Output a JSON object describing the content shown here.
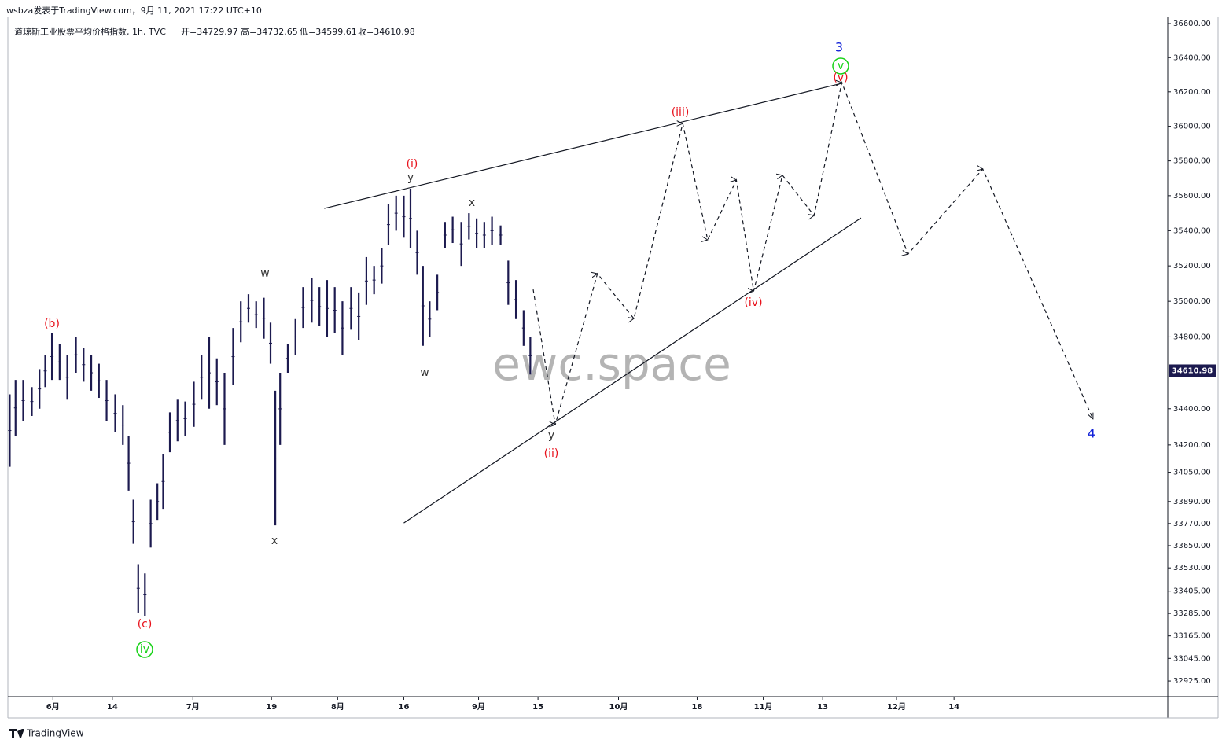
{
  "chart_data": {
    "type": "ohlc",
    "header": "wsbza发表于TradingView.com，9月 11, 2021 17:22 UTC+10",
    "symbol": "道琼斯工业股票平均价格指数, 1h, TVC",
    "ohlc_legend": [
      "开=34729.97",
      "高=34732.65",
      "低=34599.61",
      "收=34610.98"
    ],
    "watermark": "ewc.space",
    "brand": "TradingView",
    "log_scale": true,
    "color": "#1c1a4f",
    "xlim": [
      0,
      1210
    ],
    "ylim": [
      32842,
      36637
    ],
    "xticks": [
      {
        "value": 47,
        "label": "6月"
      },
      109,
      {
        "value": 193,
        "label": "7月"
      },
      275,
      {
        "value": 344,
        "label": "8月"
      },
      413,
      {
        "value": 491,
        "label": "9月"
      },
      553,
      {
        "value": 637,
        "label": "10月"
      },
      719,
      {
        "value": 788,
        "label": "11月"
      },
      850,
      {
        "value": 927,
        "label": "12月"
      },
      987
    ],
    "xtick_labels": [
      null,
      "14",
      null,
      "19",
      null,
      "16",
      null,
      "15",
      null,
      "18",
      null,
      "13",
      null,
      "14"
    ],
    "yticks": [
      {
        "value": 36600,
        "label": "36600.00"
      },
      {
        "value": 36400,
        "label": "36400.00"
      },
      {
        "value": 36200,
        "label": "36200.00"
      },
      {
        "value": 36000,
        "label": "36000.00"
      },
      {
        "value": 35800,
        "label": "35800.00"
      },
      {
        "value": 35600,
        "label": "35600.00"
      },
      {
        "value": 35400,
        "label": "35400.00"
      },
      {
        "value": 35200,
        "label": "35200.00"
      },
      {
        "value": 35000,
        "label": "35000.00"
      },
      {
        "value": 34800,
        "label": "34800.00"
      },
      {
        "value": 34400,
        "label": "34400.00"
      },
      {
        "value": 34200,
        "label": "34200.00"
      },
      {
        "value": 34050,
        "label": "34050.00"
      },
      {
        "value": 33890,
        "label": "33890.00"
      },
      {
        "value": 33770,
        "label": "33770.00"
      },
      {
        "value": 33650,
        "label": "33650.00"
      },
      {
        "value": 33530,
        "label": "33530.00"
      },
      {
        "value": 33405,
        "label": "33405.00"
      },
      {
        "value": 33285,
        "label": "33285.00"
      },
      {
        "value": 33165,
        "label": "33165.00"
      },
      {
        "value": 33045,
        "label": "33045.00"
      },
      {
        "value": 32925,
        "label": "32925.00"
      }
    ],
    "last_price": 34610.98,
    "x": [
      2,
      8,
      16,
      25,
      33,
      39,
      46,
      54,
      62,
      71,
      79,
      87,
      95,
      103,
      112,
      120,
      126,
      131,
      136,
      143,
      149,
      156,
      162,
      169,
      177,
      185,
      194,
      202,
      210,
      218,
      226,
      235,
      243,
      251,
      259,
      267,
      274,
      279,
      284,
      292,
      300,
      308,
      317,
      325,
      333,
      341,
      349,
      358,
      366,
      374,
      382,
      390,
      397,
      405,
      413,
      420,
      427,
      433,
      440,
      448,
      456,
      464,
      473,
      481,
      489,
      497,
      505,
      514,
      522,
      530,
      538,
      545
    ],
    "high": [
      34480,
      34560,
      34560,
      34520,
      34620,
      34700,
      34820,
      34760,
      34700,
      34800,
      34740,
      34700,
      34650,
      34560,
      34480,
      34420,
      34250,
      33900,
      33550,
      33500,
      33900,
      33990,
      34150,
      34380,
      34450,
      34440,
      34550,
      34700,
      34800,
      34680,
      34600,
      34850,
      35000,
      35040,
      35000,
      35020,
      34880,
      34500,
      34600,
      34760,
      34900,
      35080,
      35130,
      35080,
      35120,
      35080,
      35000,
      35080,
      35050,
      35250,
      35200,
      35300,
      35550,
      35600,
      35600,
      35640,
      35400,
      35200,
      35000,
      35150,
      35450,
      35480,
      35450,
      35500,
      35470,
      35450,
      35480,
      35430,
      35230,
      35120,
      34950,
      34800
    ],
    "low": [
      34080,
      34250,
      34330,
      34360,
      34400,
      34520,
      34560,
      34560,
      34450,
      34600,
      34550,
      34500,
      34460,
      34330,
      34270,
      34200,
      33950,
      33660,
      33290,
      33270,
      33640,
      33790,
      33850,
      34160,
      34220,
      34250,
      34300,
      34450,
      34400,
      34420,
      34200,
      34530,
      34770,
      34880,
      34850,
      34790,
      34650,
      33760,
      34200,
      34600,
      34700,
      34850,
      34880,
      34860,
      34800,
      34820,
      34700,
      34840,
      34780,
      34980,
      35040,
      35100,
      35320,
      35400,
      35360,
      35300,
      35150,
      34750,
      34800,
      34950,
      35300,
      35330,
      35200,
      35350,
      35300,
      35300,
      35320,
      35320,
      34980,
      34900,
      34750,
      34590
    ],
    "projection": {
      "x": [
        548,
        571,
        615,
        653,
        704,
        730,
        760,
        778,
        808,
        841,
        870,
        939,
        1017,
        1132
      ],
      "y": [
        35067,
        34312,
        35156,
        34903,
        36016,
        35348,
        35689,
        35058,
        35717,
        35487,
        36254,
        35267,
        35753,
        34343
      ]
    },
    "trendlines": [
      {
        "x": [
          330,
          870
        ],
        "y": [
          35527,
          36250
        ]
      },
      {
        "x": [
          413,
          890
        ],
        "y": [
          33773,
          35473
        ]
      }
    ],
    "annotations": [
      "(b)",
      "(c)",
      "iv",
      "w",
      "x",
      "(i)",
      "y",
      "x",
      "w",
      "y",
      "(ii)",
      "(iii)",
      "(iv)",
      "v",
      "(v)",
      "3",
      "4"
    ]
  }
}
